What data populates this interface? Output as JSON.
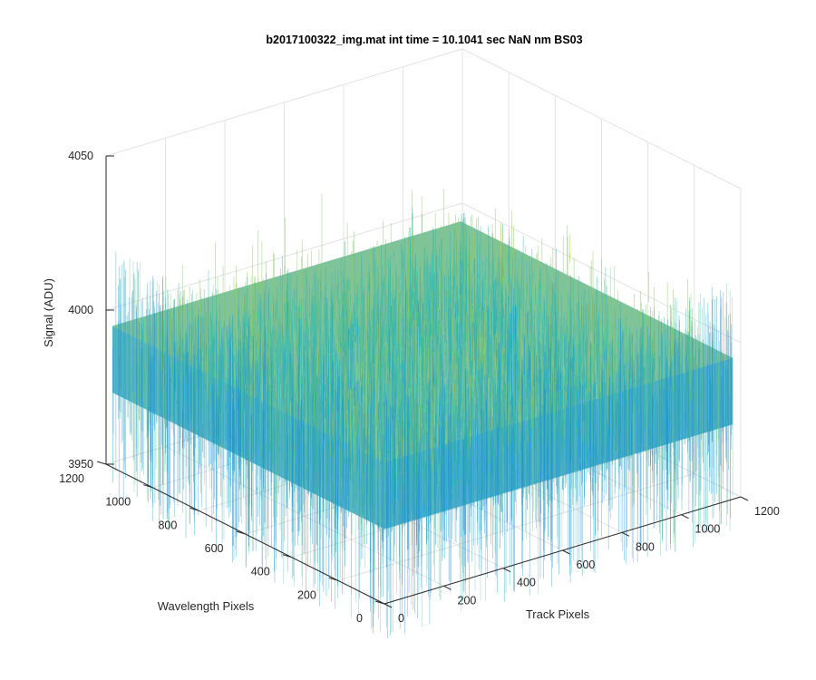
{
  "chart_data": {
    "type": "surface",
    "title": "b2017100322_img.mat int time = 10.1041 sec  NaN nm BS03",
    "xlabel": "Track Pixels",
    "ylabel": "Wavelength Pixels",
    "zlabel": "Signal (ADU)",
    "xlim": [
      0,
      1200
    ],
    "ylim": [
      0,
      1200
    ],
    "zlim": [
      3950,
      4050
    ],
    "xticks": [
      "0",
      "200",
      "400",
      "600",
      "800",
      "1000",
      "1200"
    ],
    "yticks": [
      "0",
      "200",
      "400",
      "600",
      "800",
      "1000",
      "1200"
    ],
    "zticks": [
      "3950",
      "4000",
      "4050"
    ],
    "data_extent": {
      "x": [
        1,
        1174
      ],
      "y": [
        1,
        1174
      ]
    },
    "signal_mean": 3985,
    "signal_spread": 18,
    "colormap": [
      "#0072bd",
      "#1a9fd0",
      "#3cb9a8",
      "#8bc870",
      "#e0c04a"
    ],
    "grid": true,
    "view": "3d-isometric"
  }
}
